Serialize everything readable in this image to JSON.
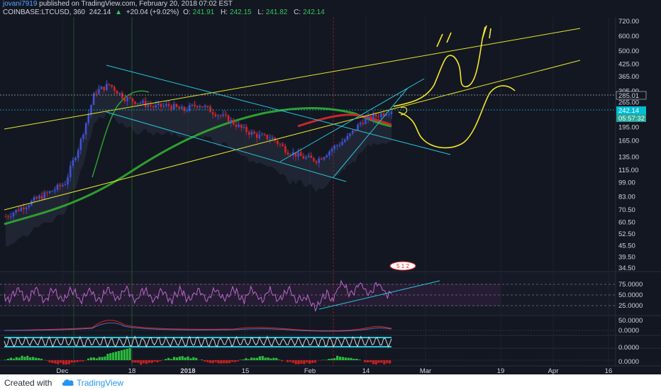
{
  "header": {
    "username": "jovani7919",
    "published": "published on TradingView.com, February 20, 2018 07:02 EST",
    "symbol": "COINBASE:LTCUSD, 360",
    "last": "242.14",
    "change": "+20.04 (+9.02%)",
    "o_label": "O:",
    "o_val": "241.91",
    "h_label": "H:",
    "h_val": "242.15",
    "l_label": "L:",
    "l_val": "241.82",
    "c_label": "C:",
    "c_val": "242.14"
  },
  "price_axis": {
    "labels": [
      "720.00",
      "600.00",
      "500.00",
      "425.00",
      "365.00",
      "305.00",
      "265.00",
      "195.00",
      "165.00",
      "135.00",
      "115.00",
      "99.00",
      "83.00",
      "70.50",
      "60.50",
      "52.50",
      "45.50",
      "39.50",
      "34.50"
    ],
    "tag_dashed": "285.01",
    "tag_price": "242.14",
    "tag_countdown": "05:57:32"
  },
  "rsi_axis": [
    "75.0000",
    "50.0000",
    "25.0000"
  ],
  "osc_axis_1": [
    "50.0000",
    "0.0000"
  ],
  "osc_axis_2": [
    "0.0000"
  ],
  "osc_axis_3": [
    "0.0000"
  ],
  "time_axis": [
    "Dec",
    "18",
    "2018",
    "15",
    "Feb",
    "14",
    "Mar",
    "19",
    "Apr",
    "16"
  ],
  "event_badge": "5 1 2",
  "colors": {
    "background": "#131722",
    "candles_blue": "#3f51e0",
    "candles_red": "#e02020",
    "ma_green": "#2e9e2e",
    "ma_red": "#c62828",
    "channel_cyan": "#26c6da",
    "trend_yellow": "#e6e62a",
    "rsi_purple": "#9c27b0",
    "price_tag_cyan": "#00bcd4",
    "countdown_green": "#26a69a"
  },
  "chart_data": {
    "type": "candlestick",
    "symbol": "COINBASE:LTCUSD",
    "interval": "360",
    "scale": "log",
    "ylim": [
      34.5,
      720
    ],
    "x": [
      "Nov 20",
      "Nov 25",
      "Nov 30",
      "Dec 5",
      "Dec 10",
      "Dec 12",
      "Dec 14",
      "Dec 17",
      "Dec 20",
      "Dec 23",
      "Dec 26",
      "Dec 30",
      "Jan 3",
      "Jan 6",
      "Jan 10",
      "Jan 14",
      "Jan 18",
      "Jan 22",
      "Jan 26",
      "Jan 30",
      "Feb 2",
      "Feb 6",
      "Feb 9",
      "Feb 12",
      "Feb 15",
      "Feb 18",
      "Feb 20"
    ],
    "close": [
      65,
      72,
      80,
      88,
      98,
      160,
      300,
      330,
      280,
      265,
      250,
      255,
      240,
      260,
      235,
      215,
      190,
      175,
      170,
      145,
      135,
      130,
      150,
      170,
      210,
      225,
      242.14
    ],
    "last_price": 242.14,
    "rsi_levels": [
      75,
      50,
      25
    ]
  }
}
